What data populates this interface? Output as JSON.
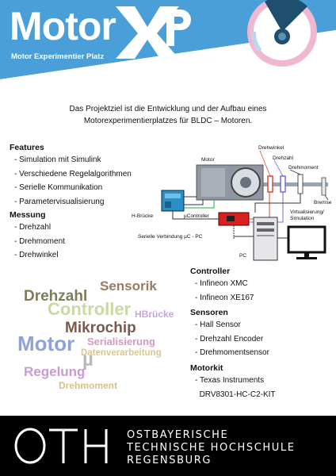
{
  "header": {
    "logo_motor": "Motor",
    "logo_xp": "XP",
    "subtitle": "Motor Experimentier Platz",
    "colors": {
      "band": "#4a9fd8",
      "pink": "#f0b8d0",
      "gauge_dark": "#1f4f6e"
    }
  },
  "intro": {
    "line1": "Das Projektziel ist die Entwicklung und der Aufbau eines",
    "line2": "Motorexperimentierplatzes für BLDC – Motoren."
  },
  "features": {
    "title": "Features",
    "items": [
      "Simulation mit Simulink",
      "Verschiedene Regelalgorithmen",
      "Serielle Kommunikation",
      "Parametervisualisierung"
    ]
  },
  "messung": {
    "title": "Messung",
    "items": [
      "Drehzahl",
      "Drehmoment",
      "Drehwinkel"
    ]
  },
  "diagram": {
    "motor": "Motor",
    "drehwinkel": "Drehwinkel",
    "drehzahl": "Drehzahl",
    "drehmoment": "Drehmoment",
    "bremse": "Bremse",
    "hbruecke": "H-Brücke",
    "controller": "µController",
    "virtual": "Virtualisierung/\nSimulation",
    "serial": "Serielle Verbindung µC - PC",
    "pc": "PC"
  },
  "controller": {
    "title": "Controller",
    "items": [
      "Infineon XMC",
      "Infineon XE167"
    ]
  },
  "sensoren": {
    "title": "Sensoren",
    "items": [
      "Hall Sensor",
      "Drehzahl Encoder",
      "Drehmomentsensor"
    ]
  },
  "motorkit": {
    "title": "Motorkit",
    "line1": "Texas Instruments",
    "line2": "DRV8301-HC-C2-KIT"
  },
  "wordcloud": {
    "words": [
      {
        "text": "Sensorik",
        "color": "#9c7a62"
      },
      {
        "text": "Drehzahl",
        "color": "#7d7d55"
      },
      {
        "text": "Controller",
        "color": "#c9d9a0"
      },
      {
        "text": "HBrücke",
        "color": "#c7a5d9"
      },
      {
        "text": "Mikrochip",
        "color": "#7a5a50"
      },
      {
        "text": "Motor",
        "color": "#8ea2d6"
      },
      {
        "text": "Serialisierung",
        "color": "#d49ac0"
      },
      {
        "text": "µ",
        "color": "#b9b9b9"
      },
      {
        "text": "Datenverarbeitung",
        "color": "#d9c78e"
      },
      {
        "text": "Regelung",
        "color": "#c99ad6"
      },
      {
        "text": "Drehmoment",
        "color": "#d6c287"
      }
    ]
  },
  "footer": {
    "logo": "OTH",
    "line1": "OSTBAYERISCHE",
    "line2": "TECHNISCHE HOCHSCHULE",
    "line3": "REGENSBURG"
  }
}
